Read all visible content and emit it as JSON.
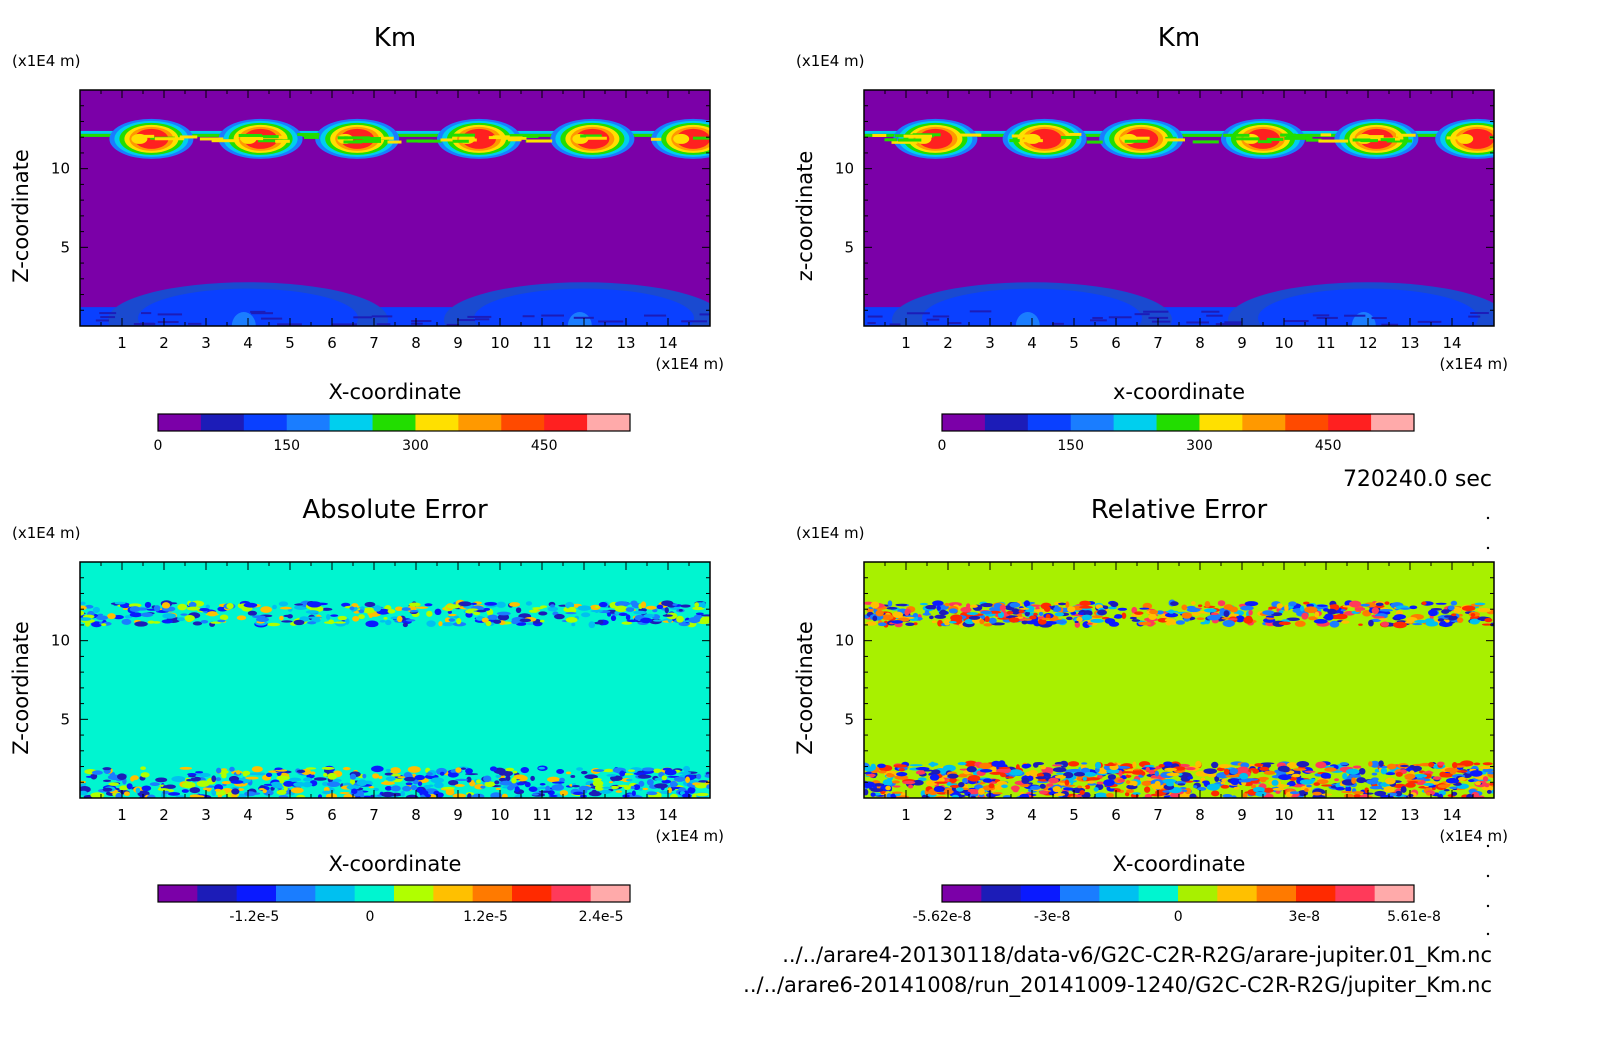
{
  "time_label": "720240.0 sec",
  "footer": {
    "line1": "../../arare4-20130118/data-v6/G2C-C2R-R2G/arare-jupiter.01_Km.nc",
    "line2": "../../arare6-20141008/run_20141009-1240/G2C-C2R-R2G/jupiter_Km.nc"
  },
  "chart_data": [
    {
      "type": "heatmap",
      "title": "Km",
      "xlabel": "X-coordinate",
      "ylabel": "Z-coordinate",
      "x_unit": "(x1E4 m)",
      "y_unit": "(x1E4 m)",
      "xticks": [
        "1",
        "2",
        "3",
        "4",
        "5",
        "6",
        "7",
        "8",
        "9",
        "10",
        "11",
        "12",
        "13",
        "14"
      ],
      "yticks": [
        "5",
        "10"
      ],
      "xlim": [
        0,
        15
      ],
      "ylim": [
        0,
        15
      ],
      "background": "#7b00a8",
      "features": {
        "top_band_z": [
          11,
          12.4
        ],
        "bottom_band_z": [
          0,
          2
        ]
      },
      "colorbar": {
        "colors": [
          "#7b00a8",
          "#1c1cb8",
          "#0a40ff",
          "#1a7dff",
          "#00cfee",
          "#22dd00",
          "#ffe000",
          "#ff9900",
          "#ff4a00",
          "#ff2020",
          "#ffaaaa"
        ],
        "ticks": [
          "0",
          "150",
          "300",
          "450"
        ],
        "tick_values": [
          0,
          150,
          300,
          450
        ],
        "range": [
          0,
          550
        ]
      }
    },
    {
      "type": "heatmap",
      "title": "Km",
      "xlabel": "x-coordinate",
      "ylabel": "z-coordinate",
      "x_unit": "(x1E4 m)",
      "y_unit": "(x1E4 m)",
      "xticks": [
        "1",
        "2",
        "3",
        "4",
        "5",
        "6",
        "7",
        "8",
        "9",
        "10",
        "11",
        "12",
        "13",
        "14"
      ],
      "yticks": [
        "5",
        "10"
      ],
      "xlim": [
        0,
        15
      ],
      "ylim": [
        0,
        15
      ],
      "background": "#7b00a8",
      "features": {
        "top_band_z": [
          11,
          12.4
        ],
        "bottom_band_z": [
          0,
          2
        ]
      },
      "colorbar": {
        "colors": [
          "#7b00a8",
          "#1c1cb8",
          "#0a40ff",
          "#1a7dff",
          "#00cfee",
          "#22dd00",
          "#ffe000",
          "#ff9900",
          "#ff4a00",
          "#ff2020",
          "#ffaaaa"
        ],
        "ticks": [
          "0",
          "150",
          "300",
          "450"
        ],
        "tick_values": [
          0,
          150,
          300,
          450
        ],
        "range": [
          0,
          550
        ]
      }
    },
    {
      "type": "heatmap",
      "title": "Absolute Error",
      "xlabel": "X-coordinate",
      "ylabel": "Z-coordinate",
      "x_unit": "(x1E4 m)",
      "y_unit": "(x1E4 m)",
      "xticks": [
        "1",
        "2",
        "3",
        "4",
        "5",
        "6",
        "7",
        "8",
        "9",
        "10",
        "11",
        "12",
        "13",
        "14"
      ],
      "yticks": [
        "5",
        "10"
      ],
      "xlim": [
        0,
        15
      ],
      "ylim": [
        0,
        15
      ],
      "background": "#00f5d0",
      "features": {
        "top_band_z": [
          11,
          12.4
        ],
        "bottom_band_z": [
          0,
          2
        ]
      },
      "colorbar": {
        "colors": [
          "#7b00a8",
          "#1c1cb8",
          "#0a1aff",
          "#1a7dff",
          "#00c0f0",
          "#00f5d0",
          "#b0ff00",
          "#ffc000",
          "#ff7a00",
          "#ff2a00",
          "#ff3a5a",
          "#ffaaaa"
        ],
        "ticks": [
          "-1.2e-5",
          "0",
          "1.2e-5",
          "2.4e-5"
        ],
        "tick_values": [
          -1.2e-05,
          0,
          1.2e-05,
          2.4e-05
        ],
        "range": [
          -2.2e-05,
          2.7e-05
        ]
      }
    },
    {
      "type": "heatmap",
      "title": "Relative Error",
      "xlabel": "X-coordinate",
      "ylabel": "Z-coordinate",
      "x_unit": "(x1E4 m)",
      "y_unit": "(x1E4 m)",
      "xticks": [
        "1",
        "2",
        "3",
        "4",
        "5",
        "6",
        "7",
        "8",
        "9",
        "10",
        "11",
        "12",
        "13",
        "14"
      ],
      "yticks": [
        "5",
        "10"
      ],
      "xlim": [
        0,
        15
      ],
      "ylim": [
        0,
        15
      ],
      "background": "#a8f000",
      "features": {
        "top_band_z": [
          11,
          12.4
        ],
        "bottom_band_z": [
          0,
          2
        ]
      },
      "colorbar": {
        "colors": [
          "#7b00a8",
          "#1c1cb8",
          "#0a1aff",
          "#1a7dff",
          "#00c0f0",
          "#00f5d0",
          "#a8f000",
          "#ffc000",
          "#ff7a00",
          "#ff2a00",
          "#ff3a5a",
          "#ffaaaa"
        ],
        "ticks": [
          "-5.62e-8",
          "-3e-8",
          "0",
          "3e-8",
          "5.61e-8"
        ],
        "tick_values": [
          -5.62e-08,
          -3e-08,
          0,
          3e-08,
          5.61e-08
        ],
        "range": [
          -5.62e-08,
          5.61e-08
        ]
      }
    }
  ]
}
